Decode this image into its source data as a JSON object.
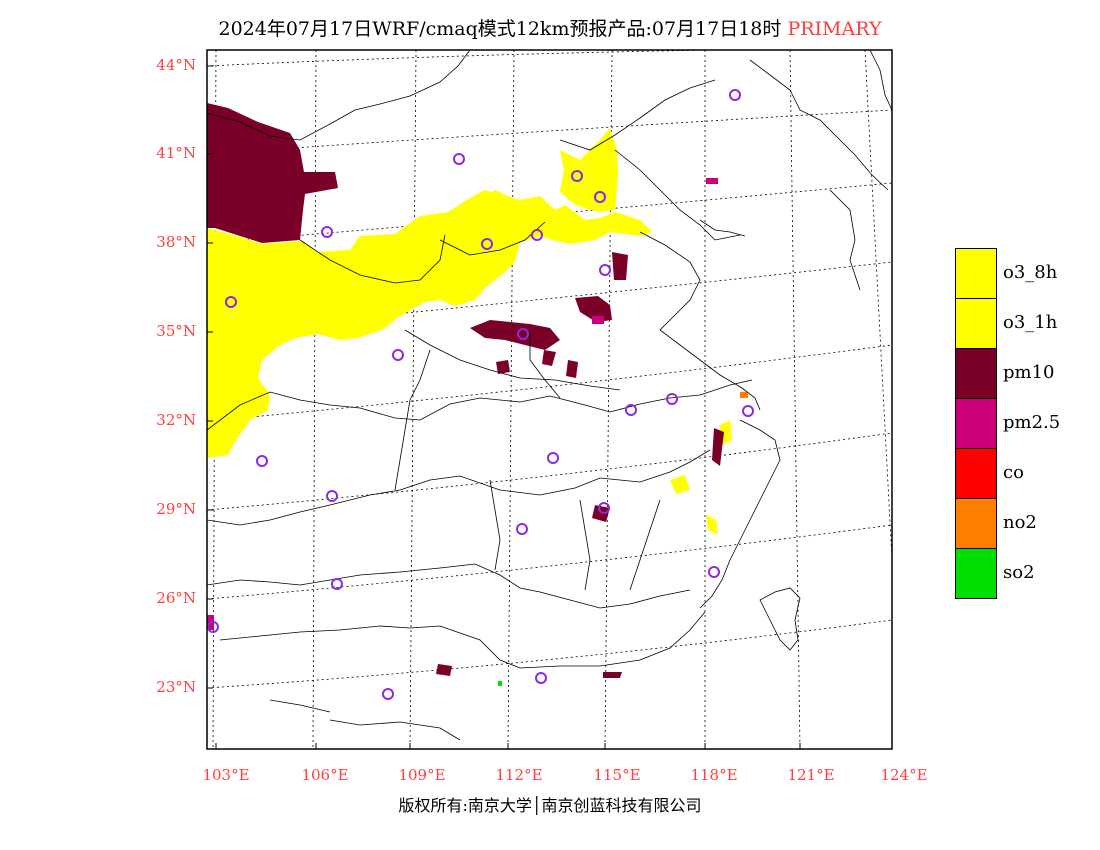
{
  "title": {
    "main": "2024年07月17日WRF/cmaq模式12km预报产品:07月17日18时",
    "product": "PRIMARY"
  },
  "map": {
    "lat_labels": [
      "44°N",
      "41°N",
      "38°N",
      "35°N",
      "32°N",
      "29°N",
      "26°N",
      "23°N"
    ],
    "lon_labels": [
      "103°E",
      "106°E",
      "109°E",
      "112°E",
      "115°E",
      "118°E",
      "121°E",
      "124°E"
    ]
  },
  "legend": {
    "items": [
      {
        "label": "o3_8h",
        "color": "#ffff00"
      },
      {
        "label": "o3_1h",
        "color": "#ffff00"
      },
      {
        "label": "pm10",
        "color": "#7a0028"
      },
      {
        "label": "pm2.5",
        "color": "#cc007a"
      },
      {
        "label": "co",
        "color": "#ff0000"
      },
      {
        "label": "no2",
        "color": "#ff8000"
      },
      {
        "label": "so2",
        "color": "#00e000"
      }
    ]
  },
  "footer": {
    "copyright": "版权所有:南京大学│南京创蓝科技有限公司"
  }
}
